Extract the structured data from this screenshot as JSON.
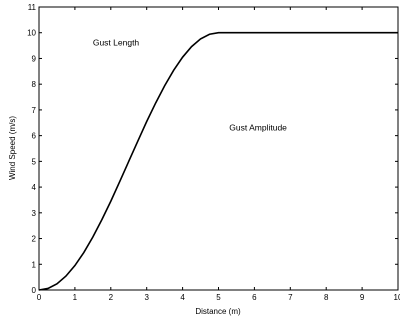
{
  "chart_data": {
    "type": "line",
    "title": "",
    "xlabel": "Distance (m)",
    "ylabel": "Wind Speed (m/s)",
    "xlim": [
      0,
      10
    ],
    "ylim": [
      0,
      11
    ],
    "xticks": [
      0,
      1,
      2,
      3,
      4,
      5,
      6,
      7,
      8,
      9,
      10
    ],
    "yticks": [
      0,
      1,
      2,
      3,
      4,
      5,
      6,
      7,
      8,
      9,
      10,
      11
    ],
    "grid": false,
    "legend": "none",
    "line_color": "#000000",
    "series": [
      {
        "x": [
          0,
          0.25,
          0.5,
          0.75,
          1,
          1.25,
          1.5,
          1.75,
          2,
          2.25,
          2.5,
          2.75,
          3,
          3.25,
          3.5,
          3.75,
          4,
          4.25,
          4.5,
          4.75,
          5,
          6,
          7,
          8,
          9,
          10
        ],
        "values": [
          0,
          0.06,
          0.24,
          0.54,
          0.95,
          1.46,
          2.06,
          2.73,
          3.45,
          4.22,
          5.0,
          5.78,
          6.55,
          7.27,
          7.94,
          8.54,
          9.05,
          9.46,
          9.76,
          9.94,
          10,
          10,
          10,
          10,
          10,
          10
        ]
      }
    ],
    "annotations": [
      {
        "text": "Gust Length",
        "x": 1.5,
        "y": 9.5
      },
      {
        "text": "Gust Amplitude",
        "x": 5.3,
        "y": 6.2
      }
    ]
  }
}
